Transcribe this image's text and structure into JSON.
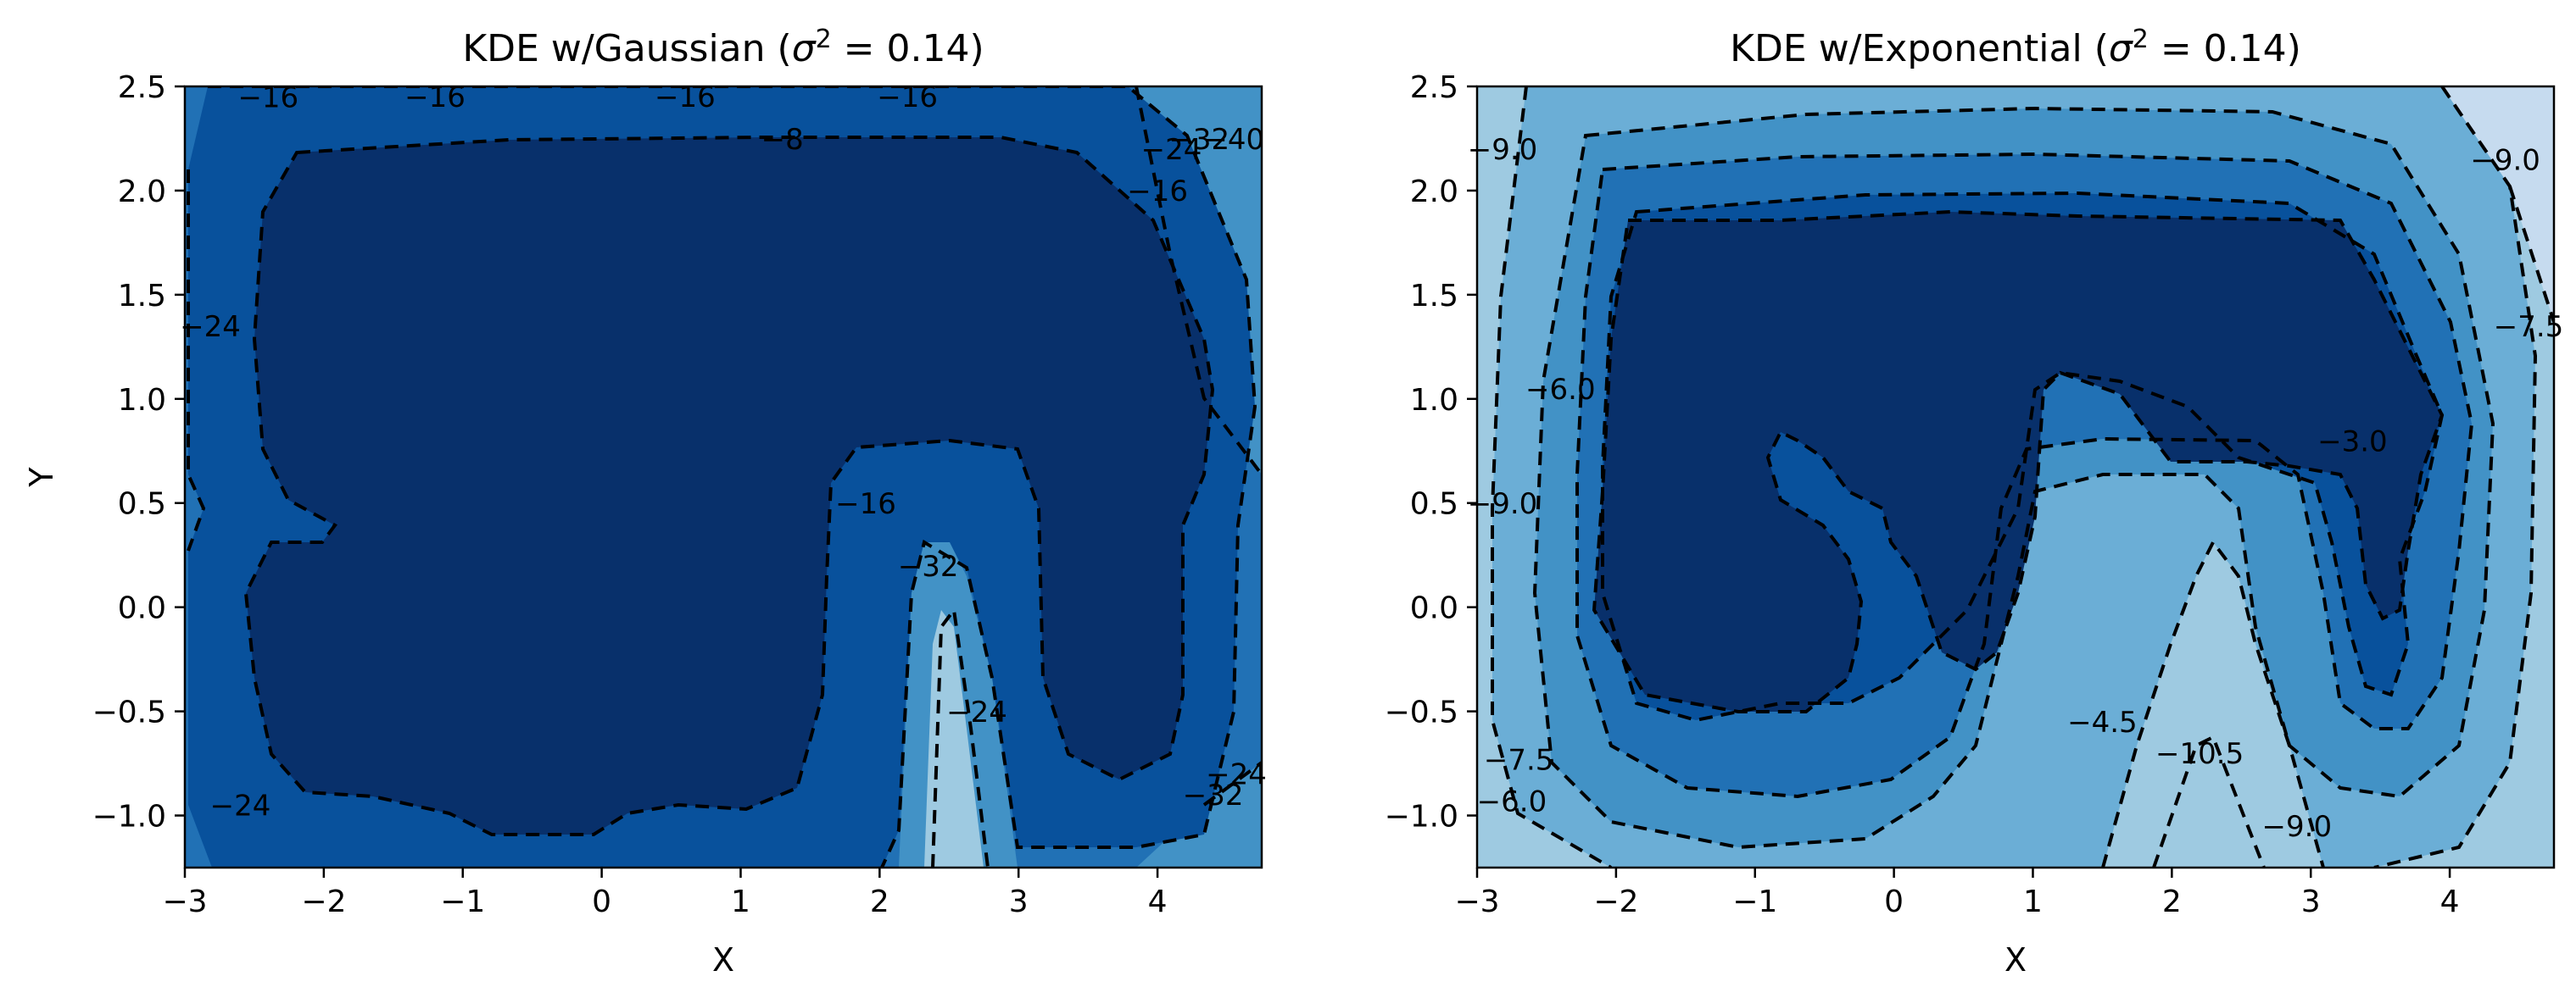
{
  "figure": {
    "colors": {
      "levels": [
        "#08306b",
        "#08519c",
        "#2171b5",
        "#4292c6",
        "#6baed6",
        "#9ecae1",
        "#c6dbef",
        "#deebf7"
      ],
      "line": "#000000",
      "frame": "#000000"
    }
  },
  "chart_data": [
    {
      "type": "contour",
      "title_prefix": "KDE w/Gaussian (",
      "title_math": "σ",
      "title_sup": "2",
      "title_suffix": " = 0.14)",
      "xlabel": "X",
      "ylabel": "Y",
      "xlim": [
        -3,
        4.75
      ],
      "ylim": [
        -1.25,
        2.5
      ],
      "xticks": [
        -3,
        -2,
        -1,
        0,
        1,
        2,
        3,
        4
      ],
      "yticks": [
        -1.0,
        -0.5,
        0.0,
        0.5,
        1.0,
        1.5,
        2.0,
        2.5
      ],
      "xtick_labels": [
        "−3",
        "−2",
        "−1",
        "0",
        "1",
        "2",
        "3",
        "4"
      ],
      "ytick_labels": [
        "−1.0",
        "−0.5",
        "0.0",
        "0.5",
        "1.0",
        "1.5",
        "2.0",
        "2.5"
      ],
      "line_style": "dashed",
      "contour_labels": [
        {
          "text": "−16",
          "x": -1.2,
          "y": 2.45
        },
        {
          "text": "−16",
          "x": 0.6,
          "y": 2.43
        },
        {
          "text": "−16",
          "x": -2.4,
          "y": 2.4
        },
        {
          "text": "−16",
          "x": 2.2,
          "y": 2.53
        },
        {
          "text": "−8",
          "x": 1.3,
          "y": 2.2
        },
        {
          "text": "−24",
          "x": 4.1,
          "y": 2.15
        },
        {
          "text": "−32",
          "x": 4.3,
          "y": 2.2
        },
        {
          "text": "−40",
          "x": 4.55,
          "y": 2.2
        },
        {
          "text": "−16",
          "x": 4.0,
          "y": 1.95
        },
        {
          "text": "−24",
          "x": -2.95,
          "y": 1.3
        },
        {
          "text": "−16",
          "x": 1.9,
          "y": 0.45
        },
        {
          "text": "−32",
          "x": 2.35,
          "y": 0.15
        },
        {
          "text": "−24",
          "x": 2.7,
          "y": -0.55
        },
        {
          "text": "−24",
          "x": -2.6,
          "y": -1.0
        },
        {
          "text": "−32",
          "x": 4.4,
          "y": -0.95
        },
        {
          "text": "−24",
          "x": 4.6,
          "y": -0.85
        }
      ]
    },
    {
      "type": "contour",
      "title_prefix": "KDE w/Exponential (",
      "title_math": "σ",
      "title_sup": "2",
      "title_suffix": " = 0.14)",
      "xlabel": "X",
      "ylabel": "",
      "xlim": [
        -3,
        4.75
      ],
      "ylim": [
        -1.25,
        2.5
      ],
      "xticks": [
        -3,
        -2,
        -1,
        0,
        1,
        2,
        3,
        4
      ],
      "yticks": [
        -1.0,
        -0.5,
        0.0,
        0.5,
        1.0,
        1.5,
        2.0,
        2.5
      ],
      "xtick_labels": [
        "−3",
        "−2",
        "−1",
        "0",
        "1",
        "2",
        "3",
        "4"
      ],
      "ytick_labels": [
        "−1.0",
        "−0.5",
        "0.0",
        "0.5",
        "1.0",
        "1.5",
        "2.0",
        "2.5"
      ],
      "line_style": "dashed",
      "contour_labels": [
        {
          "text": "−9.0",
          "x": -2.85,
          "y": 2.15
        },
        {
          "text": "−6.0",
          "x": -2.4,
          "y": 1.0
        },
        {
          "text": "−9.0",
          "x": -2.85,
          "y": 0.45
        },
        {
          "text": "−9.0",
          "x": 4.4,
          "y": 2.1
        },
        {
          "text": "−7.5",
          "x": 4.7,
          "y": 1.3
        },
        {
          "text": "−3.0",
          "x": 3.3,
          "y": 0.75
        },
        {
          "text": "−4.5",
          "x": 1.5,
          "y": -0.6
        },
        {
          "text": "−10.5",
          "x": 2.2,
          "y": -0.75
        },
        {
          "text": "−9.0",
          "x": 2.9,
          "y": -1.1
        },
        {
          "text": "−7.5",
          "x": -2.7,
          "y": -0.78
        },
        {
          "text": "−6.0",
          "x": -2.75,
          "y": -0.98
        }
      ]
    }
  ]
}
